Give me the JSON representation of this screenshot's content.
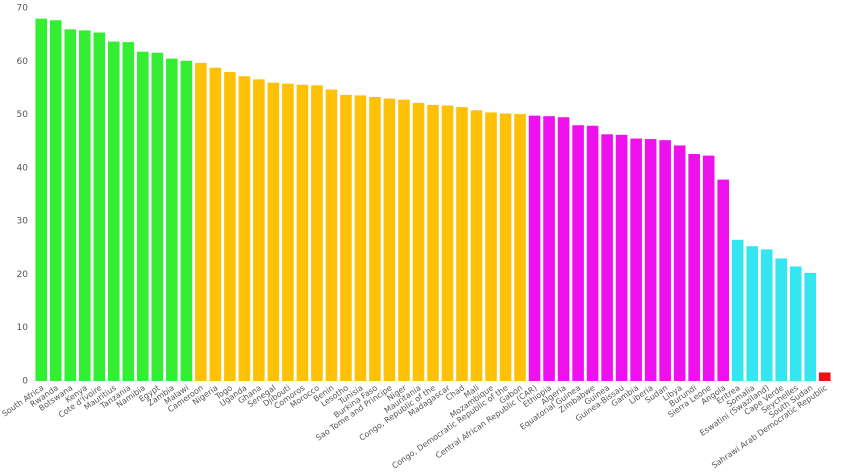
{
  "chart_data": {
    "type": "bar",
    "categories": [
      "South Africa",
      "Rwanda",
      "Botswana",
      "Kenya",
      "Cote d'Ivoire",
      "Mauritius",
      "Tanzania",
      "Namibia",
      "Egypt",
      "Zambia",
      "Malawi",
      "Cameroon",
      "Nigeria",
      "Togo",
      "Uganda",
      "Ghana",
      "Senegal",
      "Djibouti",
      "Comoros",
      "Morocco",
      "Benin",
      "Lesotho",
      "Tunisia",
      "Burkina Faso",
      "Sao Tome and Principe",
      "Niger",
      "Mauritania",
      "Congo, Republic of the",
      "Madagascar",
      "Chad",
      "Mali",
      "Mozambique",
      "Congo, Democratic Republic of the",
      "Gabon",
      "Central African Republic (CAR)",
      "Ethiopia",
      "Algeria",
      "Equatorial Guinea",
      "Zimbabwe",
      "Guinea",
      "Guinea-Bissau",
      "Gambia",
      "Liberia",
      "Sudan",
      "Libya",
      "Burundi",
      "Sierra Leone",
      "Angola",
      "Eritrea",
      "Somalia",
      "Eswatini (Swaziland)",
      "Cape Verde",
      "Seychelles",
      "South Sudan",
      "Sahrawi Arab Democratic Republic"
    ],
    "values": [
      68,
      67.7,
      66,
      65.8,
      65.4,
      63.7,
      63.6,
      61.8,
      61.6,
      60.5,
      60.1,
      59.7,
      58.8,
      58,
      57.2,
      56.6,
      56,
      55.8,
      55.6,
      55.5,
      54.7,
      53.7,
      53.6,
      53.3,
      53,
      52.8,
      52.2,
      51.8,
      51.7,
      51.4,
      50.8,
      50.4,
      50.2,
      50.1,
      49.8,
      49.7,
      49.5,
      48,
      47.9,
      46.3,
      46.2,
      45.5,
      45.4,
      45.2,
      44.2,
      42.6,
      42.3,
      37.8,
      26.5,
      25.3,
      24.7,
      23,
      21.5,
      20.3,
      1.6
    ],
    "colors": [
      "#33ee33",
      "#33ee33",
      "#33ee33",
      "#33ee33",
      "#33ee33",
      "#33ee33",
      "#33ee33",
      "#33ee33",
      "#33ee33",
      "#33ee33",
      "#33ee33",
      "#ffc107",
      "#ffc107",
      "#ffc107",
      "#ffc107",
      "#ffc107",
      "#ffc107",
      "#ffc107",
      "#ffc107",
      "#ffc107",
      "#ffc107",
      "#ffc107",
      "#ffc107",
      "#ffc107",
      "#ffc107",
      "#ffc107",
      "#ffc107",
      "#ffc107",
      "#ffc107",
      "#ffc107",
      "#ffc107",
      "#ffc107",
      "#ffc107",
      "#ffc107",
      "#ee11ee",
      "#ee11ee",
      "#ee11ee",
      "#ee11ee",
      "#ee11ee",
      "#ee11ee",
      "#ee11ee",
      "#ee11ee",
      "#ee11ee",
      "#ee11ee",
      "#ee11ee",
      "#ee11ee",
      "#ee11ee",
      "#ee11ee",
      "#33e6f0",
      "#33e6f0",
      "#33e6f0",
      "#33e6f0",
      "#33e6f0",
      "#33e6f0",
      "#ee1111"
    ],
    "ylim": [
      0,
      70
    ],
    "yticks": [
      0,
      10,
      20,
      30,
      40,
      50,
      60,
      70
    ],
    "grid": false
  }
}
